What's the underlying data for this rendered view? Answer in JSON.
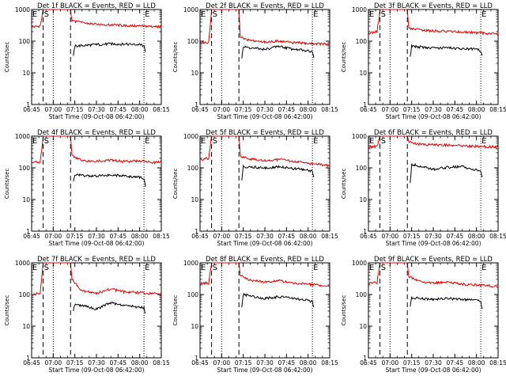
{
  "figure": {
    "background": "#ffffff",
    "colors": {
      "events": "#000000",
      "lld": "#e00000",
      "axes": "#000000"
    }
  },
  "chart_data": [
    {
      "type": "line",
      "title": "Det 1f BLACK = Events, RED = LLD",
      "xlabel": "Start Time (09-Oct-08 06:42:00)",
      "ylabel": "Counts/sec",
      "y_scale": "log",
      "ylim": [
        1,
        1000
      ],
      "xlim": [
        "06:45",
        "08:15"
      ],
      "x_ticks": [
        "06:45",
        "07:00",
        "07:15",
        "07:30",
        "07:45",
        "08:00",
        "08:15"
      ],
      "y_ticks": [
        "1",
        "10",
        "100",
        "1000"
      ],
      "markers": [
        {
          "label": "E",
          "x": "06:45",
          "style": "dotted"
        },
        {
          "label": "S",
          "x": "06:53",
          "style": "dashed"
        },
        {
          "label": "",
          "x": "07:00",
          "style": "dotted"
        },
        {
          "label": "",
          "x": "07:12",
          "style": "dashed"
        },
        {
          "label": "E",
          "x": "08:03",
          "style": "dotted"
        }
      ],
      "series": [
        {
          "name": "LLD",
          "color": "#e00000",
          "x": [
            "06:45",
            "06:51",
            "06:53",
            "06:56",
            "07:12",
            "07:13",
            "07:20",
            "07:30",
            "07:40",
            "07:50",
            "08:00",
            "08:10",
            "08:15"
          ],
          "y": [
            280,
            300,
            1000,
            1000,
            1000,
            450,
            380,
            340,
            330,
            310,
            300,
            290,
            280
          ]
        },
        {
          "name": "Events",
          "color": "#000000",
          "x": [
            "07:14",
            "07:15",
            "07:30",
            "07:40",
            "07:50",
            "08:00",
            "08:03",
            "08:04"
          ],
          "y": [
            35,
            70,
            78,
            82,
            80,
            78,
            70,
            45
          ]
        }
      ]
    },
    {
      "type": "line",
      "title": "Det 2f BLACK = Events, RED = LLD",
      "xlabel": "Start Time (09-Oct-08 06:42:00)",
      "ylabel": "Counts/sec",
      "y_scale": "log",
      "ylim": [
        1,
        1000
      ],
      "xlim": [
        "06:45",
        "08:15"
      ],
      "x_ticks": [
        "06:45",
        "07:00",
        "07:15",
        "07:30",
        "07:45",
        "08:00",
        "08:15"
      ],
      "y_ticks": [
        "1",
        "10",
        "100",
        "1000"
      ],
      "markers": [
        {
          "label": "E",
          "x": "06:45",
          "style": "dotted"
        },
        {
          "label": "S",
          "x": "06:53",
          "style": "dashed"
        },
        {
          "label": "",
          "x": "07:00",
          "style": "dotted"
        },
        {
          "label": "",
          "x": "07:12",
          "style": "dashed"
        },
        {
          "label": "E",
          "x": "08:03",
          "style": "dotted"
        }
      ],
      "series": [
        {
          "name": "LLD",
          "color": "#e00000",
          "x": [
            "06:45",
            "06:51",
            "06:53",
            "06:56",
            "07:12",
            "07:13",
            "07:20",
            "07:30",
            "07:40",
            "07:50",
            "08:00",
            "08:10",
            "08:15"
          ],
          "y": [
            90,
            90,
            1000,
            1000,
            1000,
            130,
            105,
            95,
            100,
            90,
            85,
            82,
            80
          ]
        },
        {
          "name": "Events",
          "color": "#000000",
          "x": [
            "07:14",
            "07:15",
            "07:30",
            "07:40",
            "07:50",
            "08:00",
            "08:03",
            "08:04"
          ],
          "y": [
            30,
            65,
            55,
            70,
            55,
            50,
            45,
            30
          ]
        }
      ]
    },
    {
      "type": "line",
      "title": "Det 3f BLACK = Events, RED = LLD",
      "xlabel": "Start Time (09-Oct-08 06:42:00)",
      "ylabel": "Counts/sec",
      "y_scale": "log",
      "ylim": [
        1,
        1000
      ],
      "xlim": [
        "06:45",
        "08:15"
      ],
      "x_ticks": [
        "06:45",
        "07:00",
        "07:15",
        "07:30",
        "07:45",
        "08:00",
        "08:15"
      ],
      "y_ticks": [
        "1",
        "10",
        "100",
        "1000"
      ],
      "markers": [
        {
          "label": "E",
          "x": "06:45",
          "style": "dotted"
        },
        {
          "label": "S",
          "x": "06:53",
          "style": "dashed"
        },
        {
          "label": "",
          "x": "07:00",
          "style": "dotted"
        },
        {
          "label": "",
          "x": "07:12",
          "style": "dashed"
        },
        {
          "label": "E",
          "x": "08:03",
          "style": "dotted"
        }
      ],
      "series": [
        {
          "name": "LLD",
          "color": "#e00000",
          "x": [
            "06:45",
            "06:51",
            "06:53",
            "06:56",
            "07:12",
            "07:13",
            "07:20",
            "07:30",
            "07:40",
            "07:50",
            "08:00",
            "08:10",
            "08:15"
          ],
          "y": [
            180,
            200,
            1000,
            1000,
            1000,
            260,
            230,
            210,
            205,
            195,
            185,
            175,
            170
          ]
        },
        {
          "name": "Events",
          "color": "#000000",
          "x": [
            "07:14",
            "07:15",
            "07:30",
            "07:40",
            "07:50",
            "08:00",
            "08:03",
            "08:04"
          ],
          "y": [
            35,
            70,
            60,
            62,
            58,
            55,
            50,
            35
          ]
        }
      ]
    },
    {
      "type": "line",
      "title": "Det 4f BLACK = Events, RED = LLD",
      "xlabel": "Start Time (09-Oct-08 06:42:00)",
      "ylabel": "Counts/sec",
      "y_scale": "log",
      "ylim": [
        1,
        1000
      ],
      "xlim": [
        "06:45",
        "08:15"
      ],
      "x_ticks": [
        "06:45",
        "07:00",
        "07:15",
        "07:30",
        "07:45",
        "08:00",
        "08:15"
      ],
      "y_ticks": [
        "1",
        "10",
        "100",
        "1000"
      ],
      "markers": [
        {
          "label": "E",
          "x": "06:45",
          "style": "dotted"
        },
        {
          "label": "S",
          "x": "06:53",
          "style": "dashed"
        },
        {
          "label": "",
          "x": "07:00",
          "style": "dotted"
        },
        {
          "label": "",
          "x": "07:12",
          "style": "dashed"
        },
        {
          "label": "E",
          "x": "08:03",
          "style": "dotted"
        }
      ],
      "series": [
        {
          "name": "LLD",
          "color": "#e00000",
          "x": [
            "06:45",
            "06:51",
            "06:53",
            "06:56",
            "07:12",
            "07:13",
            "07:20",
            "07:30",
            "07:40",
            "07:50",
            "08:00",
            "08:10",
            "08:15"
          ],
          "y": [
            150,
            150,
            1000,
            1000,
            1000,
            250,
            170,
            160,
            175,
            160,
            165,
            150,
            150
          ]
        },
        {
          "name": "Events",
          "color": "#000000",
          "x": [
            "07:14",
            "07:15",
            "07:30",
            "07:40",
            "07:50",
            "08:00",
            "08:03",
            "08:04"
          ],
          "y": [
            35,
            60,
            55,
            60,
            55,
            50,
            48,
            25
          ]
        }
      ]
    },
    {
      "type": "line",
      "title": "Det 5f BLACK = Events, RED = LLD",
      "xlabel": "Start Time (09-Oct-08 06:42:00)",
      "ylabel": "Counts/sec",
      "y_scale": "log",
      "ylim": [
        1,
        1000
      ],
      "xlim": [
        "06:45",
        "08:15"
      ],
      "x_ticks": [
        "06:45",
        "07:00",
        "07:15",
        "07:30",
        "07:45",
        "08:00",
        "08:15"
      ],
      "y_ticks": [
        "1",
        "10",
        "100",
        "1000"
      ],
      "markers": [
        {
          "label": "E",
          "x": "06:45",
          "style": "dotted"
        },
        {
          "label": "S",
          "x": "06:53",
          "style": "dashed"
        },
        {
          "label": "",
          "x": "07:00",
          "style": "dotted"
        },
        {
          "label": "",
          "x": "07:12",
          "style": "dashed"
        },
        {
          "label": "E",
          "x": "08:03",
          "style": "dotted"
        }
      ],
      "series": [
        {
          "name": "LLD",
          "color": "#e00000",
          "x": [
            "06:45",
            "06:51",
            "06:53",
            "06:56",
            "07:12",
            "07:13",
            "07:20",
            "07:30",
            "07:40",
            "07:50",
            "08:00",
            "08:10",
            "08:15"
          ],
          "y": [
            180,
            200,
            1000,
            1000,
            1000,
            240,
            190,
            170,
            185,
            160,
            140,
            125,
            120
          ]
        },
        {
          "name": "Events",
          "color": "#000000",
          "x": [
            "07:14",
            "07:15",
            "07:30",
            "07:40",
            "07:50",
            "08:00",
            "08:03",
            "08:04"
          ],
          "y": [
            40,
            110,
            100,
            110,
            95,
            85,
            80,
            50
          ]
        }
      ]
    },
    {
      "type": "line",
      "title": "Det 6f BLACK = Events, RED = LLD",
      "xlabel": "Start Time (09-Oct-08 06:42:00)",
      "ylabel": "Counts/sec",
      "y_scale": "log",
      "ylim": [
        1,
        1000
      ],
      "xlim": [
        "06:45",
        "08:15"
      ],
      "x_ticks": [
        "06:45",
        "07:00",
        "07:15",
        "07:30",
        "07:45",
        "08:00",
        "08:15"
      ],
      "y_ticks": [
        "1",
        "10",
        "100",
        "1000"
      ],
      "markers": [
        {
          "label": "E",
          "x": "06:45",
          "style": "dotted"
        },
        {
          "label": "S",
          "x": "06:53",
          "style": "dashed"
        },
        {
          "label": "",
          "x": "07:00",
          "style": "dotted"
        },
        {
          "label": "",
          "x": "07:12",
          "style": "dashed"
        },
        {
          "label": "E",
          "x": "08:03",
          "style": "dotted"
        }
      ],
      "series": [
        {
          "name": "LLD",
          "color": "#e00000",
          "x": [
            "06:45",
            "06:51",
            "06:53",
            "06:56",
            "07:12",
            "07:13",
            "07:20",
            "07:30",
            "07:40",
            "07:50",
            "08:00",
            "08:10",
            "08:15"
          ],
          "y": [
            450,
            480,
            1000,
            1000,
            1000,
            650,
            560,
            530,
            520,
            500,
            480,
            460,
            450
          ]
        },
        {
          "name": "Events",
          "color": "#000000",
          "x": [
            "07:14",
            "07:15",
            "07:30",
            "07:40",
            "07:50",
            "08:00",
            "08:03",
            "08:04"
          ],
          "y": [
            35,
            130,
            90,
            105,
            110,
            85,
            75,
            50
          ]
        }
      ]
    },
    {
      "type": "line",
      "title": "Det 7f BLACK = Events, RED = LLD",
      "xlabel": "Start Time (09-Oct-08 06:42:00)",
      "ylabel": "Counts/sec",
      "y_scale": "log",
      "ylim": [
        1,
        1000
      ],
      "xlim": [
        "06:45",
        "08:15"
      ],
      "x_ticks": [
        "06:45",
        "07:00",
        "07:15",
        "07:30",
        "07:45",
        "08:00",
        "08:15"
      ],
      "y_ticks": [
        "1",
        "10",
        "100",
        "1000"
      ],
      "markers": [
        {
          "label": "E",
          "x": "06:45",
          "style": "dotted"
        },
        {
          "label": "S",
          "x": "06:53",
          "style": "dashed"
        },
        {
          "label": "",
          "x": "07:00",
          "style": "dotted"
        },
        {
          "label": "",
          "x": "07:12",
          "style": "dashed"
        },
        {
          "label": "E",
          "x": "08:03",
          "style": "dotted"
        }
      ],
      "series": [
        {
          "name": "LLD",
          "color": "#e00000",
          "x": [
            "06:45",
            "06:51",
            "06:53",
            "06:56",
            "07:12",
            "07:13",
            "07:20",
            "07:30",
            "07:40",
            "07:50",
            "08:00",
            "08:10",
            "08:15"
          ],
          "y": [
            100,
            110,
            1000,
            1000,
            1000,
            300,
            130,
            110,
            150,
            120,
            115,
            105,
            100
          ]
        },
        {
          "name": "Events",
          "color": "#000000",
          "x": [
            "07:14",
            "07:15",
            "07:30",
            "07:40",
            "07:50",
            "08:00",
            "08:03",
            "08:04"
          ],
          "y": [
            30,
            50,
            35,
            55,
            45,
            40,
            38,
            25
          ]
        }
      ]
    },
    {
      "type": "line",
      "title": "Det 8f BLACK = Events, RED = LLD",
      "xlabel": "Start Time (09-Oct-08 06:42:00)",
      "ylabel": "Counts/sec",
      "y_scale": "log",
      "ylim": [
        1,
        1000
      ],
      "xlim": [
        "06:45",
        "08:15"
      ],
      "x_ticks": [
        "06:45",
        "07:00",
        "07:15",
        "07:30",
        "07:45",
        "08:00",
        "08:15"
      ],
      "y_ticks": [
        "1",
        "10",
        "100",
        "1000"
      ],
      "markers": [
        {
          "label": "E",
          "x": "06:45",
          "style": "dotted"
        },
        {
          "label": "S",
          "x": "06:53",
          "style": "dashed"
        },
        {
          "label": "",
          "x": "07:00",
          "style": "dotted"
        },
        {
          "label": "",
          "x": "07:12",
          "style": "dashed"
        },
        {
          "label": "E",
          "x": "08:03",
          "style": "dotted"
        }
      ],
      "series": [
        {
          "name": "LLD",
          "color": "#e00000",
          "x": [
            "06:45",
            "06:51",
            "06:53",
            "06:56",
            "07:12",
            "07:13",
            "07:20",
            "07:30",
            "07:40",
            "07:50",
            "08:00",
            "08:10",
            "08:15"
          ],
          "y": [
            220,
            230,
            1000,
            1000,
            1000,
            420,
            280,
            250,
            270,
            230,
            210,
            190,
            180
          ]
        },
        {
          "name": "Events",
          "color": "#000000",
          "x": [
            "07:14",
            "07:15",
            "07:30",
            "07:40",
            "07:50",
            "08:00",
            "08:03",
            "08:04"
          ],
          "y": [
            40,
            100,
            75,
            85,
            75,
            65,
            60,
            40
          ]
        }
      ]
    },
    {
      "type": "line",
      "title": "Det 9f BLACK = Events, RED = LLD",
      "xlabel": "Start Time (09-Oct-08 06:42:00)",
      "ylabel": "Counts/sec",
      "y_scale": "log",
      "ylim": [
        1,
        1000
      ],
      "xlim": [
        "06:45",
        "08:15"
      ],
      "x_ticks": [
        "06:45",
        "07:00",
        "07:15",
        "07:30",
        "07:45",
        "08:00",
        "08:15"
      ],
      "y_ticks": [
        "1",
        "10",
        "100",
        "1000"
      ],
      "markers": [
        {
          "label": "E",
          "x": "06:45",
          "style": "dotted"
        },
        {
          "label": "S",
          "x": "06:53",
          "style": "dashed"
        },
        {
          "label": "",
          "x": "07:00",
          "style": "dotted"
        },
        {
          "label": "",
          "x": "07:12",
          "style": "dashed"
        },
        {
          "label": "E",
          "x": "08:03",
          "style": "dotted"
        }
      ],
      "series": [
        {
          "name": "LLD",
          "color": "#e00000",
          "x": [
            "06:45",
            "06:51",
            "06:53",
            "06:56",
            "07:12",
            "07:13",
            "07:20",
            "07:30",
            "07:40",
            "07:50",
            "08:00",
            "08:10",
            "08:15"
          ],
          "y": [
            220,
            240,
            1000,
            1000,
            1000,
            380,
            260,
            230,
            240,
            215,
            200,
            185,
            175
          ]
        },
        {
          "name": "Events",
          "color": "#000000",
          "x": [
            "07:14",
            "07:15",
            "07:30",
            "07:40",
            "07:50",
            "08:00",
            "08:03",
            "08:04"
          ],
          "y": [
            40,
            80,
            70,
            75,
            70,
            65,
            60,
            35
          ]
        }
      ]
    }
  ]
}
